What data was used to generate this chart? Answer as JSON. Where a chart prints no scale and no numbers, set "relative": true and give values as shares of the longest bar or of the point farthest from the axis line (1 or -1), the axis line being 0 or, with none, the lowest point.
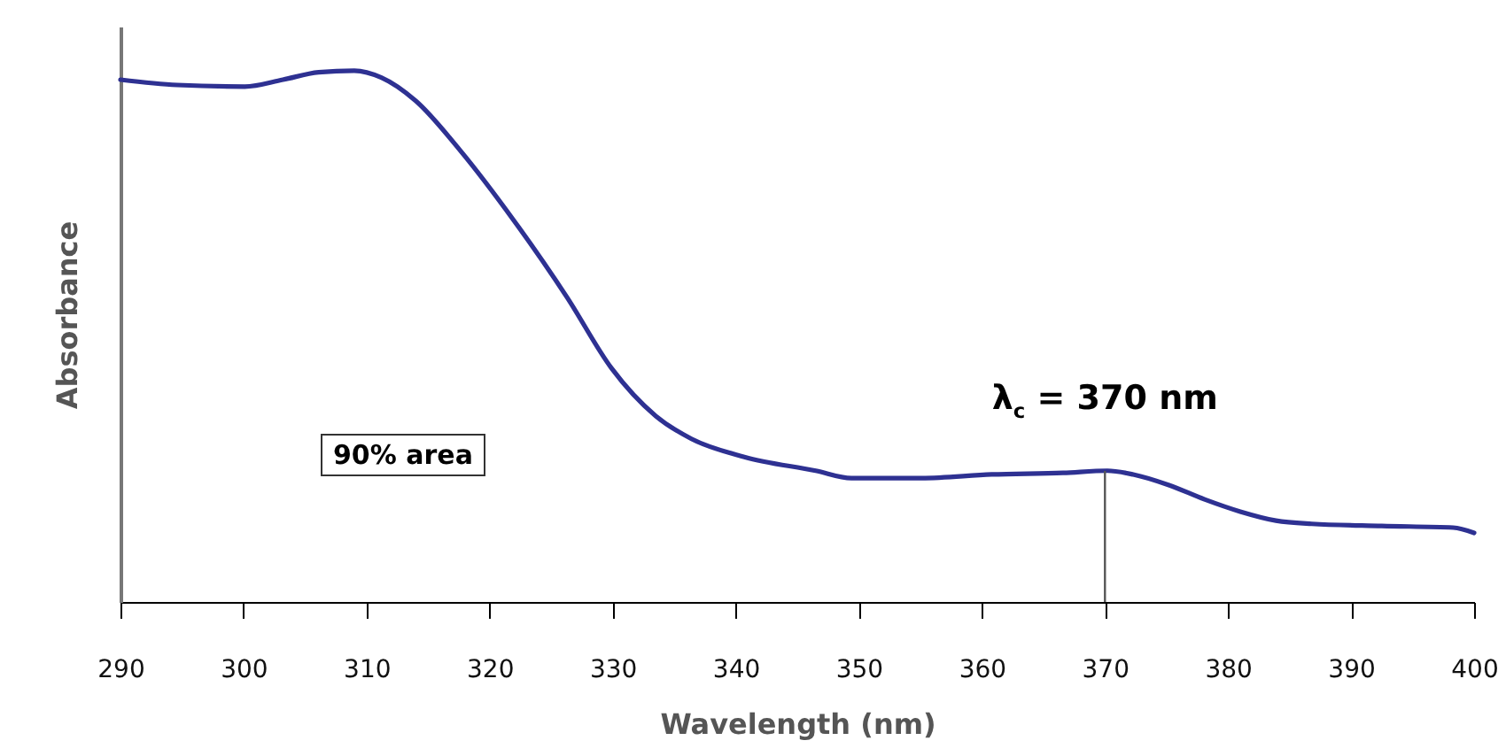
{
  "chart_data": {
    "type": "line",
    "xlabel": "Wavelength (nm)",
    "ylabel": "Absorbance",
    "relative": true,
    "xlim": [
      290,
      400
    ],
    "xticks": [
      290,
      300,
      310,
      320,
      330,
      340,
      350,
      360,
      370,
      380,
      390,
      400
    ],
    "grid": false,
    "marker": "none",
    "line_style": "solid",
    "x": [
      290,
      294.6,
      300.1,
      303.2,
      306.1,
      309.0,
      311.2,
      314.0,
      317.6,
      322.0,
      326.3,
      329.9,
      333.5,
      336.4,
      340.7,
      346.5,
      349.4,
      355.1,
      360.8,
      366.6,
      370.2,
      372.3,
      375.2,
      378.1,
      381.0,
      383.9,
      386.8,
      392.5,
      398.3,
      400
    ],
    "series": [
      {
        "color": "#2e3192",
        "values": [
          0.983,
          0.973,
          0.97,
          0.983,
          0.997,
          1,
          0.987,
          0.943,
          0.85,
          0.717,
          0.573,
          0.44,
          0.35,
          0.307,
          0.273,
          0.247,
          0.233,
          0.233,
          0.24,
          0.243,
          0.247,
          0.24,
          0.22,
          0.193,
          0.17,
          0.153,
          0.147,
          0.143,
          0.14,
          0.13
        ]
      }
    ],
    "ref_lines": [
      {
        "axis": "x",
        "value": 370,
        "label": "λ$_{c}$ = 370 nm",
        "color": "#555555"
      }
    ],
    "annotations": [
      "90% area"
    ]
  }
}
